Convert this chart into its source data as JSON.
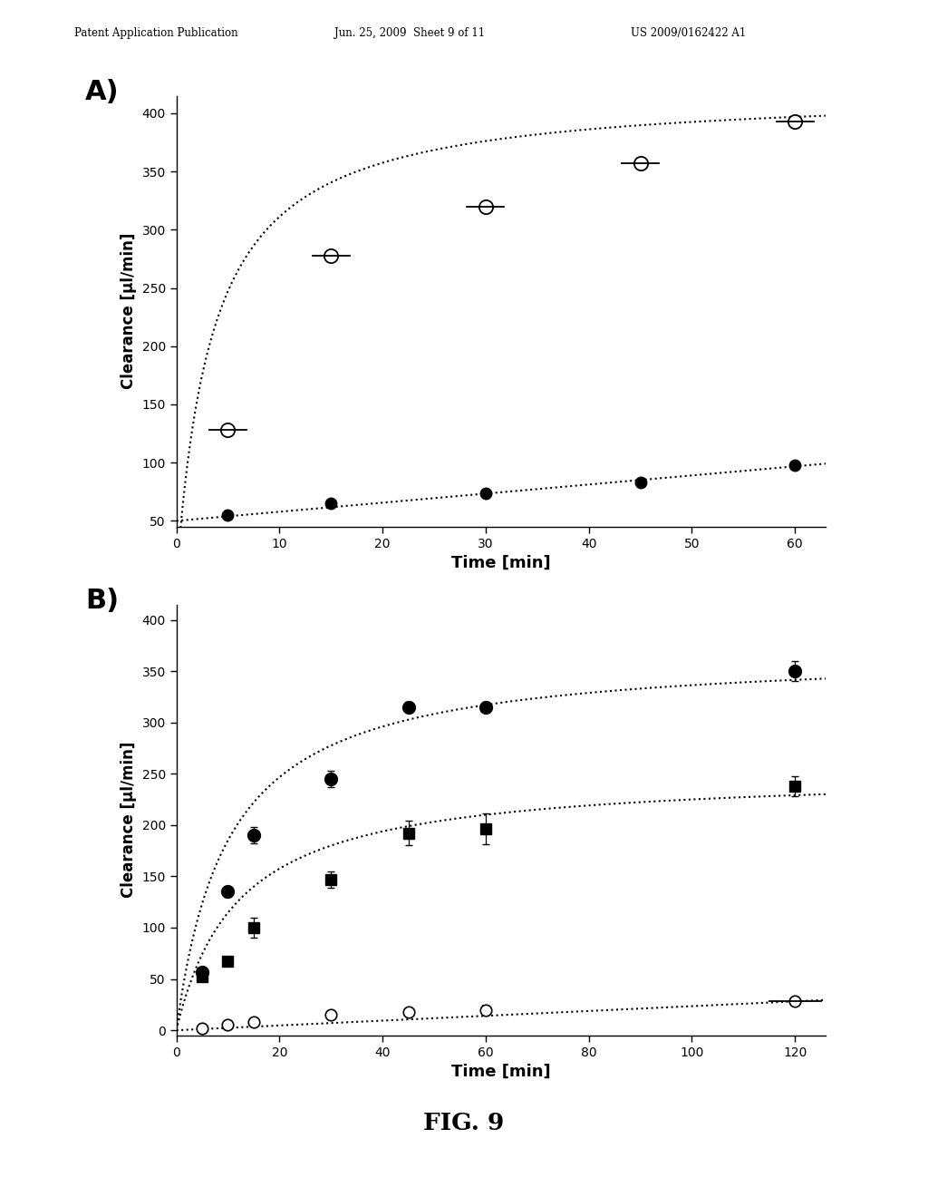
{
  "header_left": "Patent Application Publication",
  "header_mid": "Jun. 25, 2009  Sheet 9 of 11",
  "header_right": "US 2009/0162422 A1",
  "fig_label": "FIG. 9",
  "panelA": {
    "label": "A)",
    "xlabel": "Time [min]",
    "ylabel": "Clearance [μl/min]",
    "xlim": [
      0,
      63
    ],
    "ylim": [
      45,
      415
    ],
    "xticks": [
      0,
      10,
      20,
      30,
      40,
      50,
      60
    ],
    "yticks": [
      50,
      100,
      150,
      200,
      250,
      300,
      350,
      400
    ],
    "series_open": {
      "x": [
        5,
        15,
        30,
        45,
        60
      ],
      "y": [
        128,
        278,
        320,
        357,
        393
      ],
      "fit_Vmax": 420,
      "fit_Km": 3.5
    },
    "series_closed": {
      "x": [
        5,
        15,
        30,
        45,
        60
      ],
      "y": [
        55,
        65,
        74,
        83,
        98
      ],
      "fit_a": 50,
      "fit_b": 0.78
    }
  },
  "panelB": {
    "label": "B)",
    "xlabel": "Time [min]",
    "ylabel": "Clearance [μl/min]",
    "xlim": [
      0,
      126
    ],
    "ylim": [
      -5,
      415
    ],
    "xticks": [
      0,
      20,
      40,
      60,
      80,
      100,
      120
    ],
    "yticks": [
      0,
      50,
      100,
      150,
      200,
      250,
      300,
      350,
      400
    ],
    "series_filled_circle": {
      "x": [
        5,
        10,
        15,
        30,
        45,
        60,
        120
      ],
      "y": [
        57,
        135,
        190,
        245,
        315,
        315,
        350
      ],
      "yerr": [
        3,
        5,
        8,
        8,
        5,
        5,
        10
      ],
      "fit_Vmax": 370,
      "fit_Km": 10
    },
    "series_filled_square": {
      "x": [
        5,
        10,
        15,
        30,
        45,
        60,
        120
      ],
      "y": [
        52,
        67,
        100,
        147,
        192,
        196,
        238
      ],
      "yerr": [
        3,
        4,
        10,
        8,
        12,
        15,
        10
      ],
      "fit_Vmax": 252,
      "fit_Km": 12
    },
    "series_open_circle": {
      "x": [
        5,
        10,
        15,
        30,
        45,
        60,
        120
      ],
      "y": [
        2,
        5,
        8,
        15,
        18,
        20,
        28
      ],
      "yerr": [
        1,
        1,
        2,
        2,
        3,
        4,
        3
      ],
      "fit_a": 0,
      "fit_b": 0.235
    }
  },
  "colors": {
    "black": "#000000",
    "white": "#ffffff",
    "background": "#ffffff"
  }
}
